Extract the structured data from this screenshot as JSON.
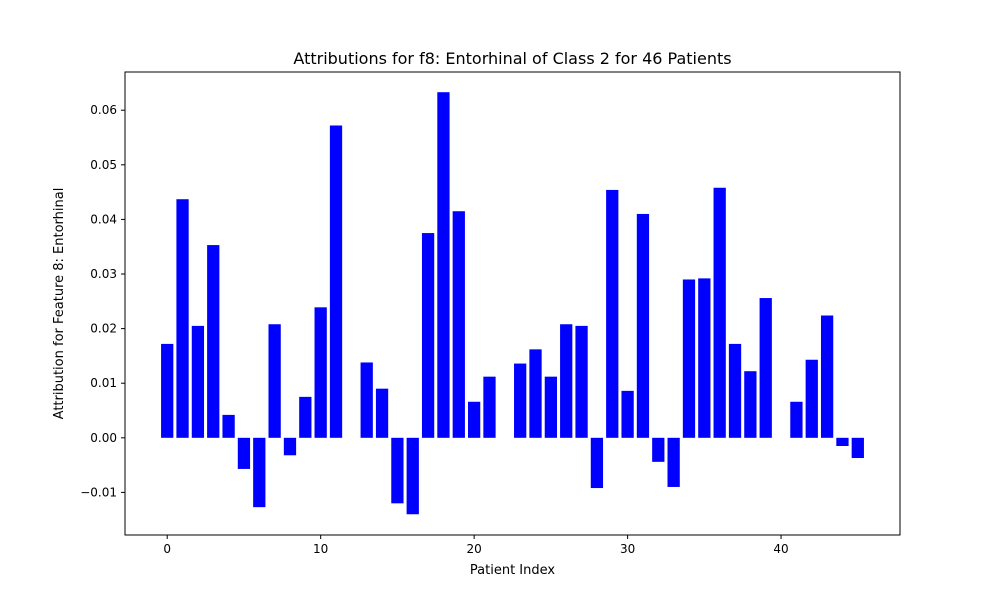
{
  "chart_data": {
    "type": "bar",
    "title": "Attributions for f8: Entorhinal of Class 2 for 46 Patients",
    "xlabel": "Patient Index",
    "ylabel": "Attribution for Feature 8: Entorhinal",
    "x": [
      0,
      1,
      2,
      3,
      4,
      5,
      6,
      7,
      8,
      9,
      10,
      11,
      12,
      13,
      14,
      15,
      16,
      17,
      18,
      19,
      20,
      21,
      22,
      23,
      24,
      25,
      26,
      27,
      28,
      29,
      30,
      31,
      32,
      33,
      34,
      35,
      36,
      37,
      38,
      39,
      40,
      41,
      42,
      43,
      44,
      45
    ],
    "values": [
      0.0172,
      0.0437,
      0.0205,
      0.0353,
      0.0042,
      -0.0057,
      -0.0127,
      0.0208,
      -0.0032,
      0.0075,
      0.0239,
      0.0572,
      0.0,
      0.0138,
      0.009,
      -0.012,
      -0.014,
      0.0375,
      0.0633,
      0.0415,
      0.0066,
      0.0112,
      0.0,
      0.0136,
      0.0162,
      0.0112,
      0.0208,
      0.0205,
      -0.0092,
      0.0454,
      0.0086,
      0.041,
      -0.0044,
      -0.009,
      0.029,
      0.0292,
      0.0458,
      0.0172,
      0.0122,
      0.0256,
      0.0,
      0.0066,
      0.0143,
      0.0224,
      -0.0015,
      -0.0037
    ],
    "xlim": [
      -2.75,
      47.75
    ],
    "ylim": [
      -0.0178,
      0.067
    ],
    "xticks": [
      0,
      10,
      20,
      30,
      40
    ],
    "yticks": [
      -0.01,
      0.0,
      0.01,
      0.02,
      0.03,
      0.04,
      0.05,
      0.06
    ],
    "ytick_labels": [
      "−0.01",
      "0.00",
      "0.01",
      "0.02",
      "0.03",
      "0.04",
      "0.05",
      "0.06"
    ],
    "bar_color": "#0000ff",
    "grid": false,
    "legend": "none"
  }
}
